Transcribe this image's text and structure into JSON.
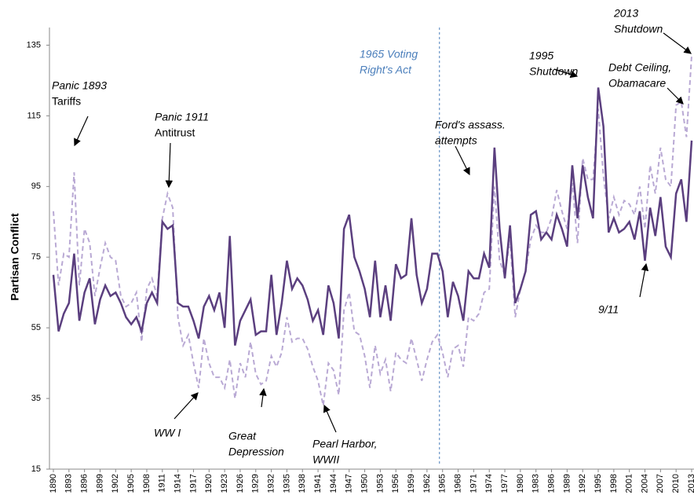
{
  "chart_data": {
    "type": "line",
    "y_label": "Partisan Conflict",
    "x": [
      1890,
      1891,
      1892,
      1893,
      1894,
      1895,
      1896,
      1897,
      1898,
      1899,
      1900,
      1901,
      1902,
      1903,
      1904,
      1905,
      1906,
      1907,
      1908,
      1909,
      1910,
      1911,
      1912,
      1913,
      1914,
      1915,
      1916,
      1917,
      1918,
      1919,
      1920,
      1921,
      1922,
      1923,
      1924,
      1925,
      1926,
      1927,
      1928,
      1929,
      1930,
      1931,
      1932,
      1933,
      1934,
      1935,
      1936,
      1937,
      1938,
      1939,
      1940,
      1941,
      1942,
      1943,
      1944,
      1945,
      1946,
      1947,
      1948,
      1949,
      1950,
      1951,
      1952,
      1953,
      1954,
      1955,
      1956,
      1957,
      1958,
      1959,
      1960,
      1961,
      1962,
      1963,
      1964,
      1965,
      1966,
      1967,
      1968,
      1969,
      1970,
      1971,
      1972,
      1973,
      1974,
      1975,
      1976,
      1977,
      1978,
      1979,
      1980,
      1981,
      1982,
      1983,
      1984,
      1985,
      1986,
      1987,
      1988,
      1989,
      1990,
      1991,
      1992,
      1993,
      1994,
      1995,
      1996,
      1997,
      1998,
      1999,
      2000,
      2001,
      2002,
      2003,
      2004,
      2005,
      2006,
      2007,
      2008,
      2009,
      2010,
      2011,
      2012,
      2013
    ],
    "series": [
      {
        "color": "#b9a9d4",
        "dashed": true,
        "values": [
          88,
          67,
          76,
          75,
          99,
          67,
          83,
          79,
          64,
          72,
          79,
          75,
          74,
          64,
          61,
          62,
          65,
          51,
          66,
          69,
          64,
          86,
          93,
          89,
          58,
          50,
          53,
          45,
          38,
          52,
          45,
          41,
          41,
          38,
          46,
          35,
          45,
          41,
          51,
          42,
          39,
          40,
          47,
          44,
          48,
          58,
          51,
          52,
          52,
          49,
          44,
          40,
          33,
          45,
          43,
          36,
          60,
          65,
          54,
          53,
          47,
          38,
          50,
          42,
          46,
          37,
          48,
          46,
          45,
          52,
          46,
          40,
          46,
          51,
          53,
          48,
          41,
          49,
          50,
          44,
          58,
          57,
          59,
          65,
          66,
          95,
          74,
          70,
          80,
          58,
          66,
          71,
          80,
          84,
          82,
          82,
          86,
          94,
          88,
          83,
          96,
          79,
          103,
          97,
          97,
          117,
          98,
          86,
          92,
          87,
          91,
          90,
          87,
          95,
          83,
          101,
          93,
          106,
          97,
          95,
          118,
          119,
          109,
          132
        ]
      },
      {
        "color": "#5b3f7f",
        "dashed": false,
        "values": [
          70,
          54,
          59,
          62,
          76,
          57,
          65,
          69,
          56,
          63,
          67,
          64,
          65,
          62,
          58,
          56,
          58,
          54,
          62,
          65,
          62,
          85,
          83,
          84,
          62,
          61,
          61,
          57,
          52,
          61,
          64,
          60,
          65,
          55,
          81,
          50,
          57,
          60,
          63,
          53,
          54,
          54,
          70,
          53,
          62,
          74,
          66,
          69,
          67,
          63,
          57,
          60,
          53,
          67,
          62,
          52,
          83,
          87,
          75,
          71,
          66,
          58,
          74,
          58,
          67,
          57,
          73,
          69,
          70,
          86,
          70,
          62,
          66,
          76,
          76,
          71,
          58,
          68,
          64,
          57,
          71,
          69,
          69,
          76,
          72,
          106,
          83,
          69,
          84,
          62,
          66,
          71,
          87,
          88,
          80,
          82,
          80,
          87,
          83,
          78,
          101,
          86,
          101,
          92,
          86,
          123,
          112,
          82,
          86,
          82,
          83,
          85,
          80,
          88,
          74,
          89,
          81,
          92,
          78,
          75,
          93,
          97,
          85,
          108
        ]
      }
    ],
    "xlim": [
      1890,
      2013
    ],
    "xticks": [
      1890,
      1893,
      1896,
      1899,
      1902,
      1905,
      1908,
      1911,
      1914,
      1917,
      1920,
      1923,
      1926,
      1929,
      1932,
      1935,
      1938,
      1941,
      1944,
      1947,
      1950,
      1953,
      1956,
      1959,
      1962,
      1965,
      1968,
      1971,
      1974,
      1977,
      1980,
      1983,
      1986,
      1989,
      1992,
      1995,
      1998,
      2001,
      2004,
      2007,
      2010,
      2013
    ],
    "ylim": [
      15,
      140
    ],
    "yticks": [
      15,
      35,
      55,
      75,
      95,
      115,
      135
    ],
    "vline": {
      "x": 1964.4,
      "color": "#4a7ebb",
      "lines": [
        "1965 Voting",
        "Right's Act"
      ]
    },
    "annotations": [
      {
        "lines": [
          "Panic 1893",
          "Tariffs"
        ]
      },
      {
        "lines": [
          "Panic 1911",
          "Antitrust"
        ]
      },
      {
        "lines": [
          "WW I"
        ]
      },
      {
        "lines": [
          "Great",
          "Depression"
        ]
      },
      {
        "lines": [
          "Pearl Harbor,",
          "WWII"
        ]
      },
      {
        "lines": [
          "Ford's assass.",
          "attempts"
        ]
      },
      {
        "lines": [
          "1995",
          "Shutdown"
        ]
      },
      {
        "lines": [
          "2013",
          "Shutdown"
        ]
      },
      {
        "lines": [
          "Debt Ceiling,",
          "Obamacare"
        ]
      },
      {
        "lines": [
          "9/11"
        ]
      }
    ]
  }
}
